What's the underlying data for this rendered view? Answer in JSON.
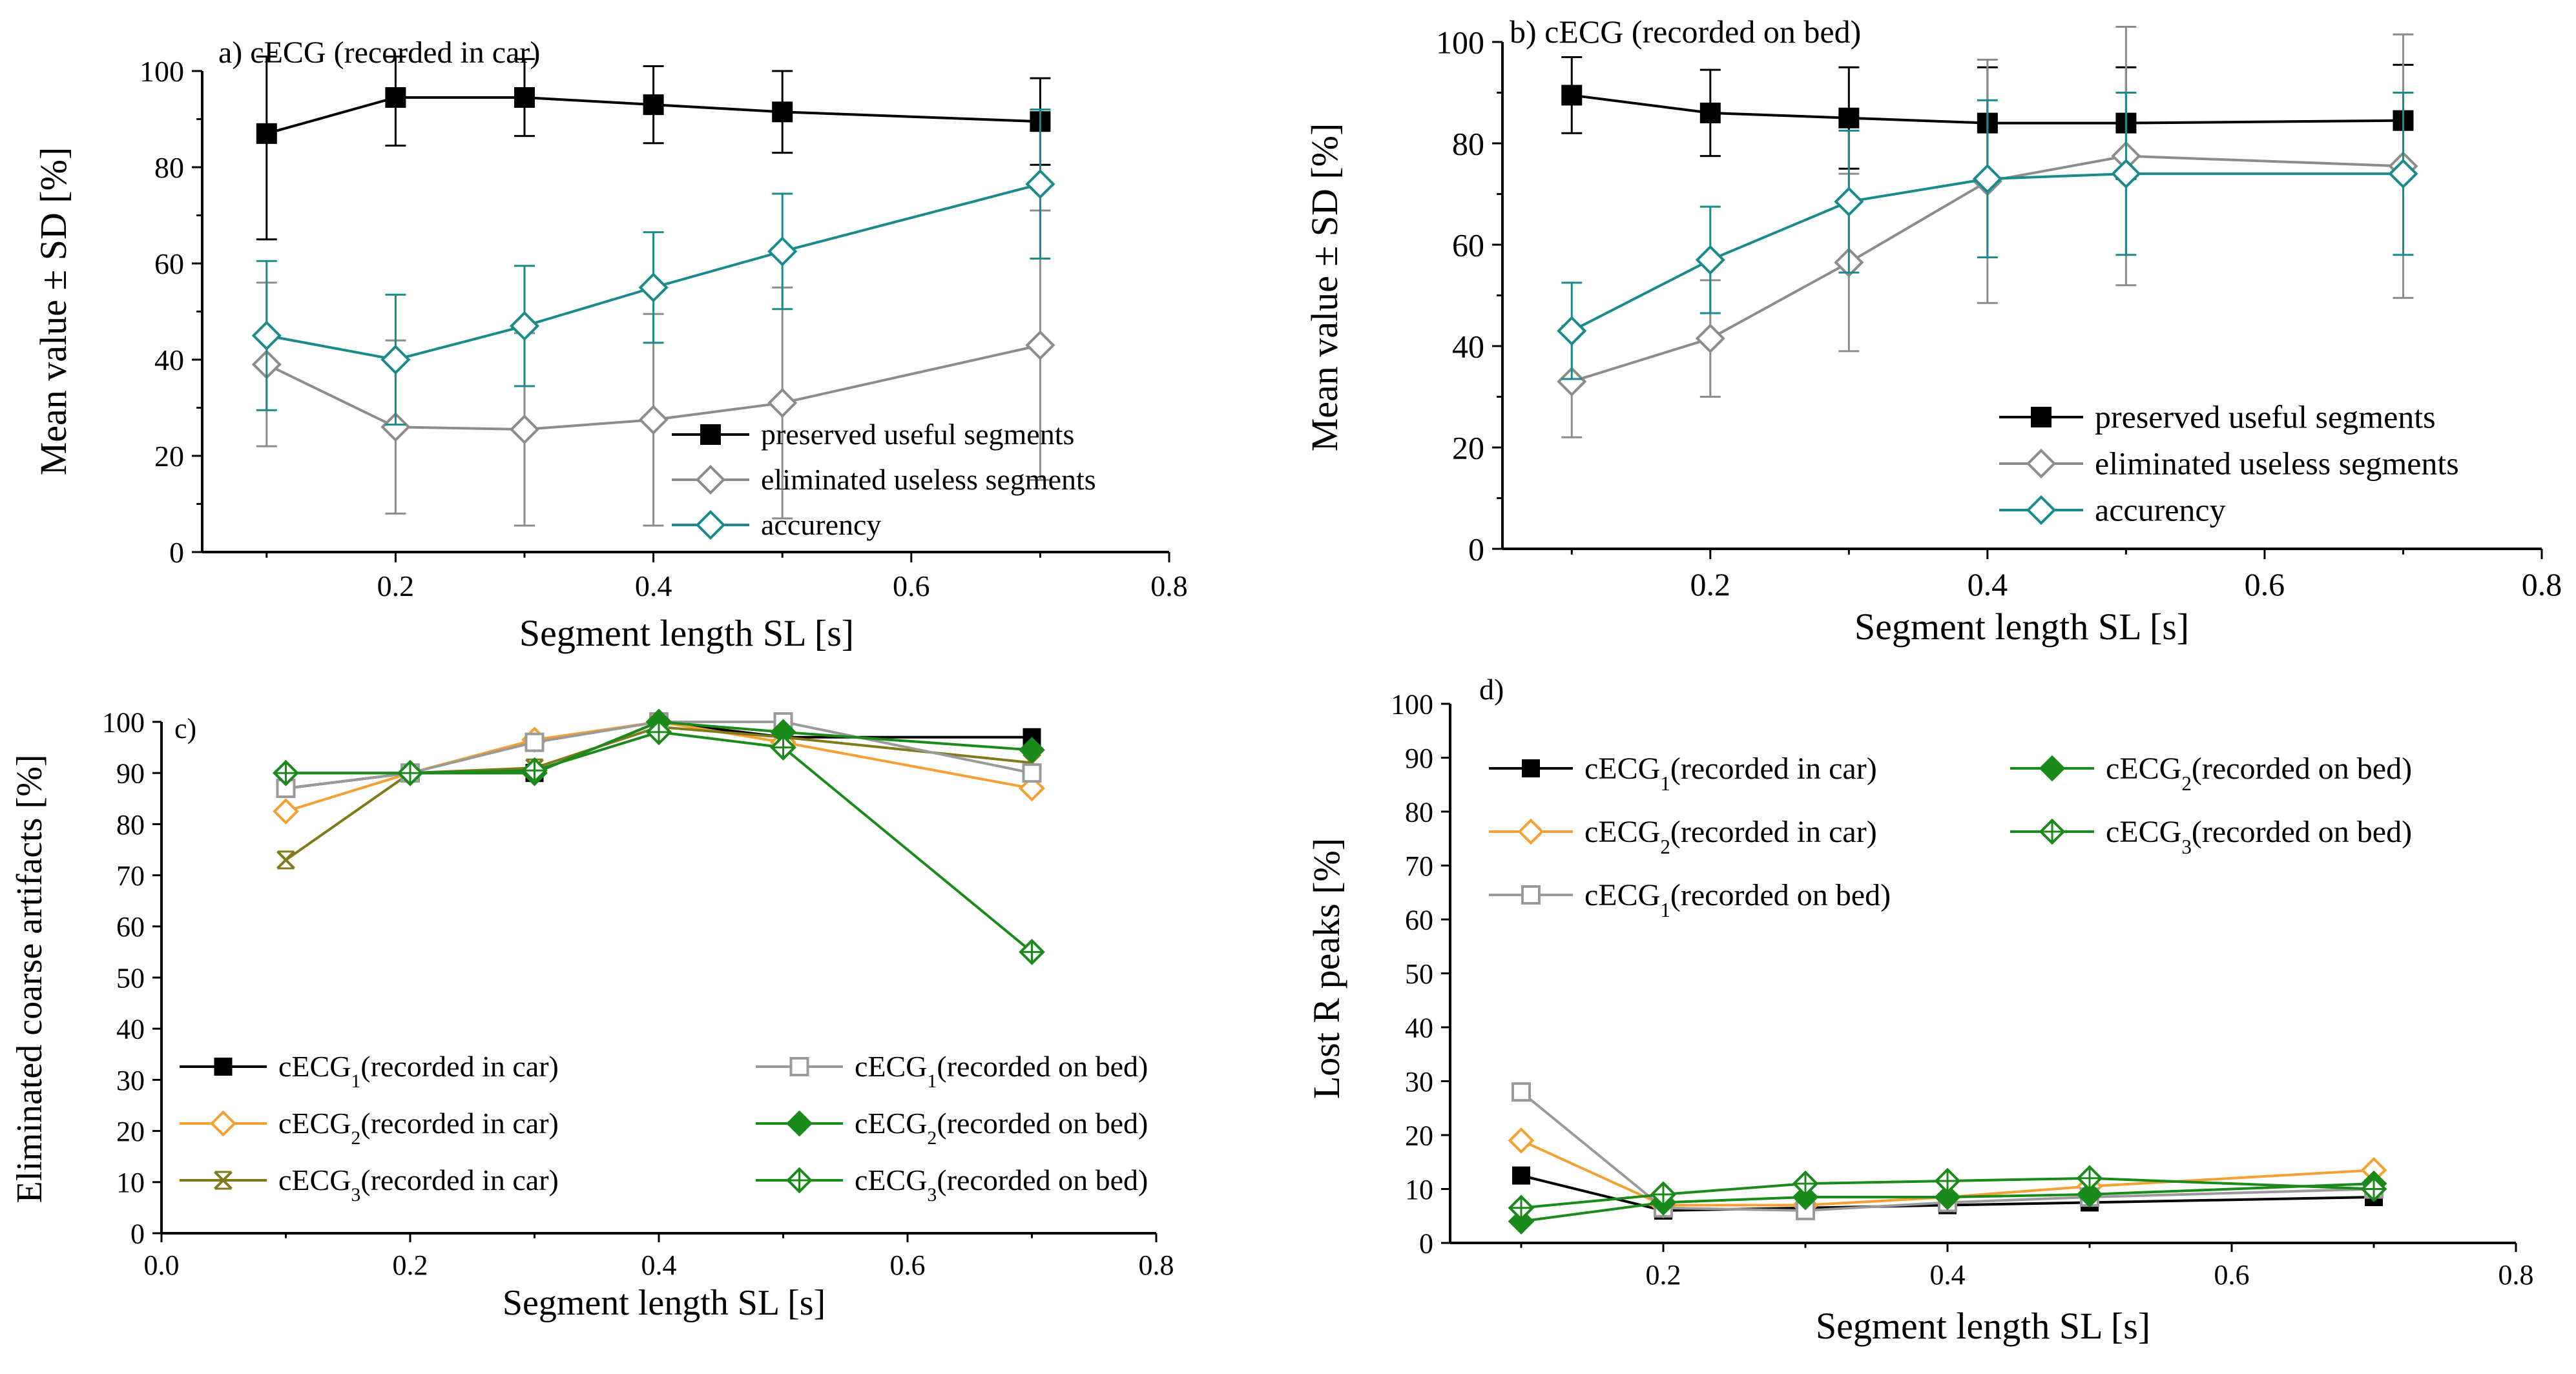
{
  "colors": {
    "black": "#000000",
    "gray": "#8c8c8c",
    "teal": "#1a8a8a",
    "orange": "#f5a033",
    "green": "#1a8a1a",
    "olive": "#807a1a",
    "lightgray": "#9a9a9a"
  },
  "chart_data": [
    {
      "id": "a",
      "type": "line",
      "title": "a) cECG (recorded in car)",
      "xlabel": "Segment length SL [s]",
      "ylabel": "Mean value ± SD [%]",
      "xlim": [
        0.05,
        0.8
      ],
      "ylim": [
        0,
        100
      ],
      "xticks": [
        0.2,
        0.4,
        0.6,
        0.8
      ],
      "xtick_labels": [
        "0.2",
        "0.4",
        "0.6",
        "0.8"
      ],
      "yticks": [
        0,
        20,
        40,
        60,
        80,
        100
      ],
      "ytick_labels": [
        "0",
        "20",
        "40",
        "60",
        "80",
        "100"
      ],
      "legend_position": "lower-right",
      "x": [
        0.1,
        0.2,
        0.3,
        0.4,
        0.5,
        0.7
      ],
      "series": [
        {
          "name": "preserved useful segments",
          "color_key": "black",
          "marker": "square-filled",
          "values": [
            87,
            94.5,
            94.5,
            93,
            91.5,
            89.5
          ],
          "sd": [
            22,
            10,
            8,
            8,
            8.5,
            9
          ]
        },
        {
          "name": "eliminated useless segments",
          "color_key": "gray",
          "marker": "diamond-open",
          "values": [
            39,
            26,
            25.5,
            27.5,
            31,
            43
          ],
          "sd": [
            17,
            18,
            20,
            22,
            24,
            28
          ]
        },
        {
          "name": "accurency",
          "color_key": "teal",
          "marker": "diamond-open",
          "values": [
            45,
            40,
            47,
            55,
            62.5,
            76.5
          ],
          "sd": [
            15.5,
            13.5,
            12.5,
            11.5,
            12,
            15.5
          ]
        }
      ]
    },
    {
      "id": "b",
      "type": "line",
      "title": "b) cECG (recorded on bed)",
      "xlabel": "Segment length SL [s]",
      "ylabel": "Mean value ± SD [%]",
      "xlim": [
        0.05,
        0.8
      ],
      "ylim": [
        0,
        100
      ],
      "xticks": [
        0.2,
        0.4,
        0.6,
        0.8
      ],
      "xtick_labels": [
        "0.2",
        "0.4",
        "0.6",
        "0.8"
      ],
      "yticks": [
        0,
        20,
        40,
        60,
        80,
        100
      ],
      "ytick_labels": [
        "0",
        "20",
        "40",
        "60",
        "80",
        "100"
      ],
      "legend_position": "lower-right",
      "x": [
        0.1,
        0.2,
        0.3,
        0.4,
        0.5,
        0.7
      ],
      "series": [
        {
          "name": "preserved useful segments",
          "color_key": "black",
          "marker": "square-filled",
          "values": [
            89.5,
            86,
            85,
            84,
            84,
            84.5
          ],
          "sd": [
            7.5,
            8.5,
            10,
            11,
            11,
            11
          ]
        },
        {
          "name": "eliminated useless segments",
          "color_key": "gray",
          "marker": "diamond-open",
          "values": [
            33,
            41.5,
            56.5,
            72.5,
            77.5,
            75.5
          ],
          "sd": [
            11,
            11.5,
            17.5,
            24,
            25.5,
            26
          ]
        },
        {
          "name": "accurency",
          "color_key": "teal",
          "marker": "diamond-open",
          "values": [
            43,
            57,
            68.5,
            73,
            74,
            74
          ],
          "sd": [
            9.5,
            10.5,
            14,
            15.5,
            16,
            16
          ]
        }
      ]
    },
    {
      "id": "c",
      "type": "line",
      "title": "c)",
      "xlabel": "Segment length SL [s]",
      "ylabel": "Eliminated coarse artifacts [%]",
      "xlim": [
        0.0,
        0.8
      ],
      "ylim": [
        0,
        100
      ],
      "xticks": [
        0.0,
        0.2,
        0.4,
        0.6,
        0.8
      ],
      "xtick_labels": [
        "0.0",
        "0.2",
        "0.4",
        "0.6",
        "0.8"
      ],
      "yticks": [
        0,
        10,
        20,
        30,
        40,
        50,
        60,
        70,
        80,
        90,
        100
      ],
      "ytick_labels": [
        "0",
        "10",
        "20",
        "30",
        "40",
        "50",
        "60",
        "70",
        "80",
        "90",
        "100"
      ],
      "legend_position": "bottom",
      "x": [
        0.1,
        0.2,
        0.3,
        0.4,
        0.5,
        0.7
      ],
      "series": [
        {
          "name": "cECG",
          "sub": "1",
          "suffix": "(recorded in car)",
          "color_key": "black",
          "marker": "square-filled",
          "values": [
            87,
            90,
            90,
            100,
            97,
            97
          ]
        },
        {
          "name": "cECG",
          "sub": "2",
          "suffix": "(recorded in car)",
          "color_key": "orange",
          "marker": "diamond-open",
          "values": [
            82.5,
            90,
            96.5,
            100,
            96,
            87
          ]
        },
        {
          "name": "cECG",
          "sub": "3",
          "suffix": "(recorded in car)",
          "color_key": "olive",
          "marker": "x-box",
          "values": [
            73,
            90,
            91,
            99,
            97,
            92
          ]
        },
        {
          "name": "cECG",
          "sub": "1",
          "suffix": "(recorded on bed)",
          "color_key": "lightgray",
          "marker": "square-open",
          "values": [
            87,
            90,
            96,
            100,
            100,
            90
          ]
        },
        {
          "name": "cECG",
          "sub": "2",
          "suffix": "(recorded on bed)",
          "color_key": "green",
          "marker": "diamond-filled",
          "values": [
            90,
            90,
            90,
            100,
            98,
            94.5
          ]
        },
        {
          "name": "cECG",
          "sub": "3",
          "suffix": "(recorded on bed)",
          "color_key": "green",
          "marker": "diamond-cross",
          "values": [
            90,
            90,
            90.5,
            98,
            95,
            55
          ]
        }
      ]
    },
    {
      "id": "d",
      "type": "line",
      "title": "d)",
      "xlabel": "Segment length SL [s]",
      "ylabel": "Lost R peaks [%]",
      "xlim": [
        0.05,
        0.8
      ],
      "ylim": [
        0,
        100
      ],
      "xticks": [
        0.2,
        0.4,
        0.6,
        0.8
      ],
      "xtick_labels": [
        "0.2",
        "0.4",
        "0.6",
        "0.8"
      ],
      "yticks": [
        0,
        10,
        20,
        30,
        40,
        50,
        60,
        70,
        80,
        90,
        100
      ],
      "ytick_labels": [
        "0",
        "10",
        "20",
        "30",
        "40",
        "50",
        "60",
        "70",
        "80",
        "90",
        "100"
      ],
      "legend_position": "top",
      "x": [
        0.1,
        0.2,
        0.3,
        0.4,
        0.5,
        0.7
      ],
      "series": [
        {
          "name": "cECG",
          "sub": "1",
          "suffix": "(recorded in car)",
          "color_key": "black",
          "marker": "square-filled",
          "values": [
            12.5,
            6,
            6.5,
            7,
            7.5,
            8.5
          ]
        },
        {
          "name": "cECG",
          "sub": "2",
          "suffix": "(recorded in car)",
          "color_key": "orange",
          "marker": "diamond-open",
          "values": [
            19,
            7,
            7,
            8.5,
            10.5,
            13.5
          ]
        },
        {
          "name": "cECG",
          "sub": "1",
          "suffix": "(recorded on bed)",
          "color_key": "lightgray",
          "marker": "square-open",
          "values": [
            28,
            6.5,
            6,
            7.5,
            8.5,
            10
          ]
        },
        {
          "name": "cECG",
          "sub": "2",
          "suffix": "(recorded on bed)",
          "color_key": "green",
          "marker": "diamond-filled",
          "values": [
            4,
            7.5,
            8.5,
            8.5,
            9,
            11
          ]
        },
        {
          "name": "cECG",
          "sub": "3",
          "suffix": "(recorded on bed)",
          "color_key": "green",
          "marker": "diamond-cross",
          "values": [
            6.5,
            9,
            11,
            11.5,
            12,
            10
          ]
        }
      ]
    }
  ]
}
